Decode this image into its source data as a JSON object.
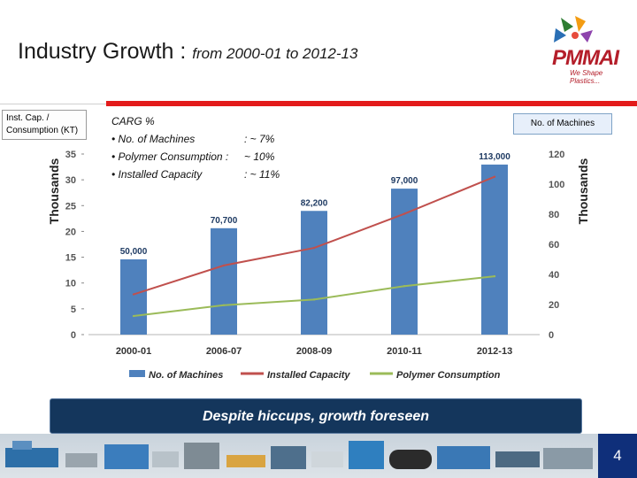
{
  "slide": {
    "title": "Industry Growth : ",
    "subtitle": "from 2000-01 to 2012-13",
    "banner": "Despite hiccups, growth foreseen",
    "page_number": "4"
  },
  "logo": {
    "word": "PMMAI",
    "tagline": "We Shape Plastics..."
  },
  "boxes": {
    "left": "Inst. Cap. / Consumption (KT)",
    "right": "No. of Machines"
  },
  "cagr": {
    "heading": "CARG %",
    "rows": [
      {
        "label": "• No. of Machines",
        "value": ": ~ 7%"
      },
      {
        "label": "• Polymer Consumption :",
        "value": "~ 10%"
      },
      {
        "label": "• Installed Capacity",
        "value": ": ~ 11%"
      }
    ]
  },
  "colors": {
    "bars": "#4f81bd",
    "installed": "#c0504d",
    "polymer": "#9bbb59",
    "banner": "#14365c",
    "accent_red": "#e31b1b"
  },
  "chart_data": {
    "type": "bar",
    "categories": [
      "2000-01",
      "2006-07",
      "2008-09",
      "2010-11",
      "2012-13"
    ],
    "left_axis": {
      "label": "Thousands",
      "min": 0,
      "max": 35,
      "ticks": [
        0,
        5,
        10,
        15,
        20,
        25,
        30,
        35
      ]
    },
    "right_axis": {
      "label": "Thousands",
      "min": 0,
      "max": 120,
      "ticks": [
        0,
        20,
        40,
        60,
        80,
        100,
        120
      ]
    },
    "bar_labels": [
      "50,000",
      "70,700",
      "82,200",
      "97,000",
      "113,000"
    ],
    "series": [
      {
        "name": "No. of Machines",
        "kind": "bar",
        "axis": "right",
        "values": [
          50,
          70.7,
          82.2,
          97,
          113
        ]
      },
      {
        "name": "Installed Capacity",
        "kind": "line",
        "axis": "left",
        "values": [
          7.8,
          13.4,
          16.8,
          23.4,
          30.6
        ]
      },
      {
        "name": "Polymer Consumption",
        "kind": "line",
        "axis": "left",
        "values": [
          3.6,
          5.7,
          6.8,
          9.4,
          11.3
        ]
      }
    ],
    "legend_position": "bottom",
    "grid": false
  }
}
